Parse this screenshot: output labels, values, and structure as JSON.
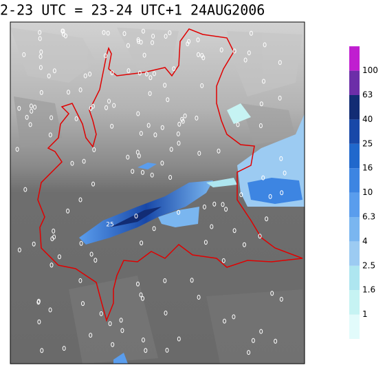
{
  "title": "2-23 UTC = 23-24 UTC+1 24AUG2006",
  "map_label": "25",
  "colorbar": {
    "levels": [
      1,
      1.6,
      2.5,
      4,
      6.3,
      10,
      16,
      25,
      40,
      63,
      100
    ],
    "colors": [
      "#e2fbfb",
      "#c6f3f3",
      "#aee6f0",
      "#9ccbf2",
      "#7ab6f0",
      "#5a9ded",
      "#3d85e2",
      "#2068cc",
      "#1848a8",
      "#122c74",
      "#6c2ea8",
      "#c01ed0"
    ]
  }
}
